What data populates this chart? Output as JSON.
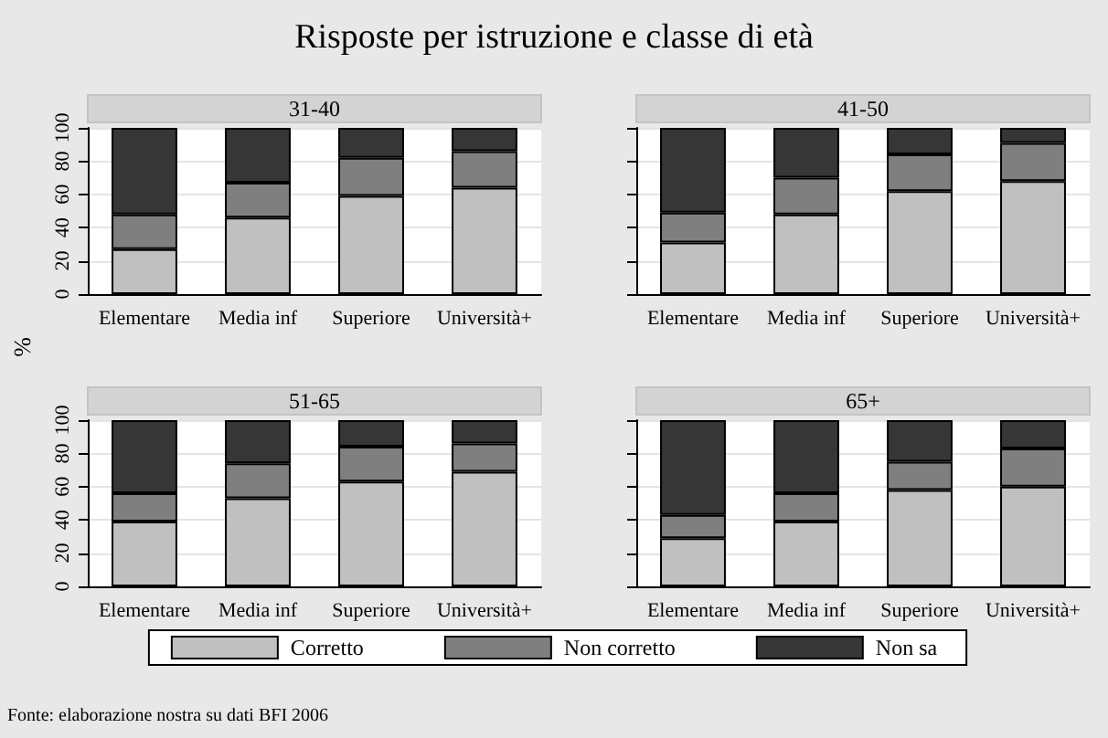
{
  "chart_data": [
    {
      "type": "bar",
      "title": "Risposte per istruzione e classe di età",
      "subtitle": "31-40",
      "ylabel": "%",
      "annotations": [
        "Fonte: elaborazione nostra su dati BFI 2006"
      ],
      "categories": [
        "Elementare",
        "Media inf",
        "Superiore",
        "Università+"
      ],
      "stacked": true,
      "ylim": [
        0,
        100
      ],
      "yticks": [
        0,
        20,
        40,
        60,
        80,
        100
      ],
      "grid": "y",
      "legend": "bottom",
      "series": [
        {
          "name": "Corretto",
          "color": "#c0c0c0",
          "values": [
            27,
            46,
            59,
            64
          ]
        },
        {
          "name": "Non corretto",
          "color": "#7f7f7f",
          "values": [
            21,
            21,
            23,
            22
          ]
        },
        {
          "name": "Non sa",
          "color": "#363636",
          "values": [
            52,
            33,
            18,
            14
          ]
        }
      ]
    },
    {
      "type": "bar",
      "subtitle": "41-50",
      "categories": [
        "Elementare",
        "Media inf",
        "Superiore",
        "Università+"
      ],
      "stacked": true,
      "ylim": [
        0,
        100
      ],
      "yticks": [
        0,
        20,
        40,
        60,
        80,
        100
      ],
      "grid": "y",
      "tick_labels": "x",
      "series": [
        {
          "color": "#c0c0c0",
          "values": [
            31,
            48,
            62,
            68
          ]
        },
        {
          "color": "#7f7f7f",
          "values": [
            18,
            22,
            22,
            23
          ]
        },
        {
          "color": "#363636",
          "values": [
            51,
            30,
            16,
            9
          ]
        }
      ]
    },
    {
      "type": "bar",
      "subtitle": "51-65",
      "categories": [
        "Elementare",
        "Media inf",
        "Superiore",
        "Università+"
      ],
      "stacked": true,
      "ylim": [
        0,
        100
      ],
      "yticks": [
        0,
        20,
        40,
        60,
        80,
        100
      ],
      "grid": "y",
      "series": [
        {
          "color": "#c0c0c0",
          "values": [
            39,
            53,
            63,
            69
          ]
        },
        {
          "color": "#7f7f7f",
          "values": [
            17,
            21,
            21,
            17
          ]
        },
        {
          "color": "#363636",
          "values": [
            44,
            26,
            16,
            14
          ]
        }
      ]
    },
    {
      "type": "bar",
      "subtitle": "65+",
      "categories": [
        "Elementare",
        "Media inf",
        "Superiore",
        "Università+"
      ],
      "stacked": true,
      "ylim": [
        0,
        100
      ],
      "yticks": [
        0,
        20,
        40,
        60,
        80,
        100
      ],
      "grid": "y",
      "tick_labels": "x",
      "series": [
        {
          "color": "#c0c0c0",
          "values": [
            29,
            39,
            58,
            60
          ]
        },
        {
          "color": "#7f7f7f",
          "values": [
            14,
            17,
            17,
            23
          ]
        },
        {
          "color": "#363636",
          "values": [
            57,
            44,
            25,
            17
          ]
        }
      ]
    }
  ]
}
